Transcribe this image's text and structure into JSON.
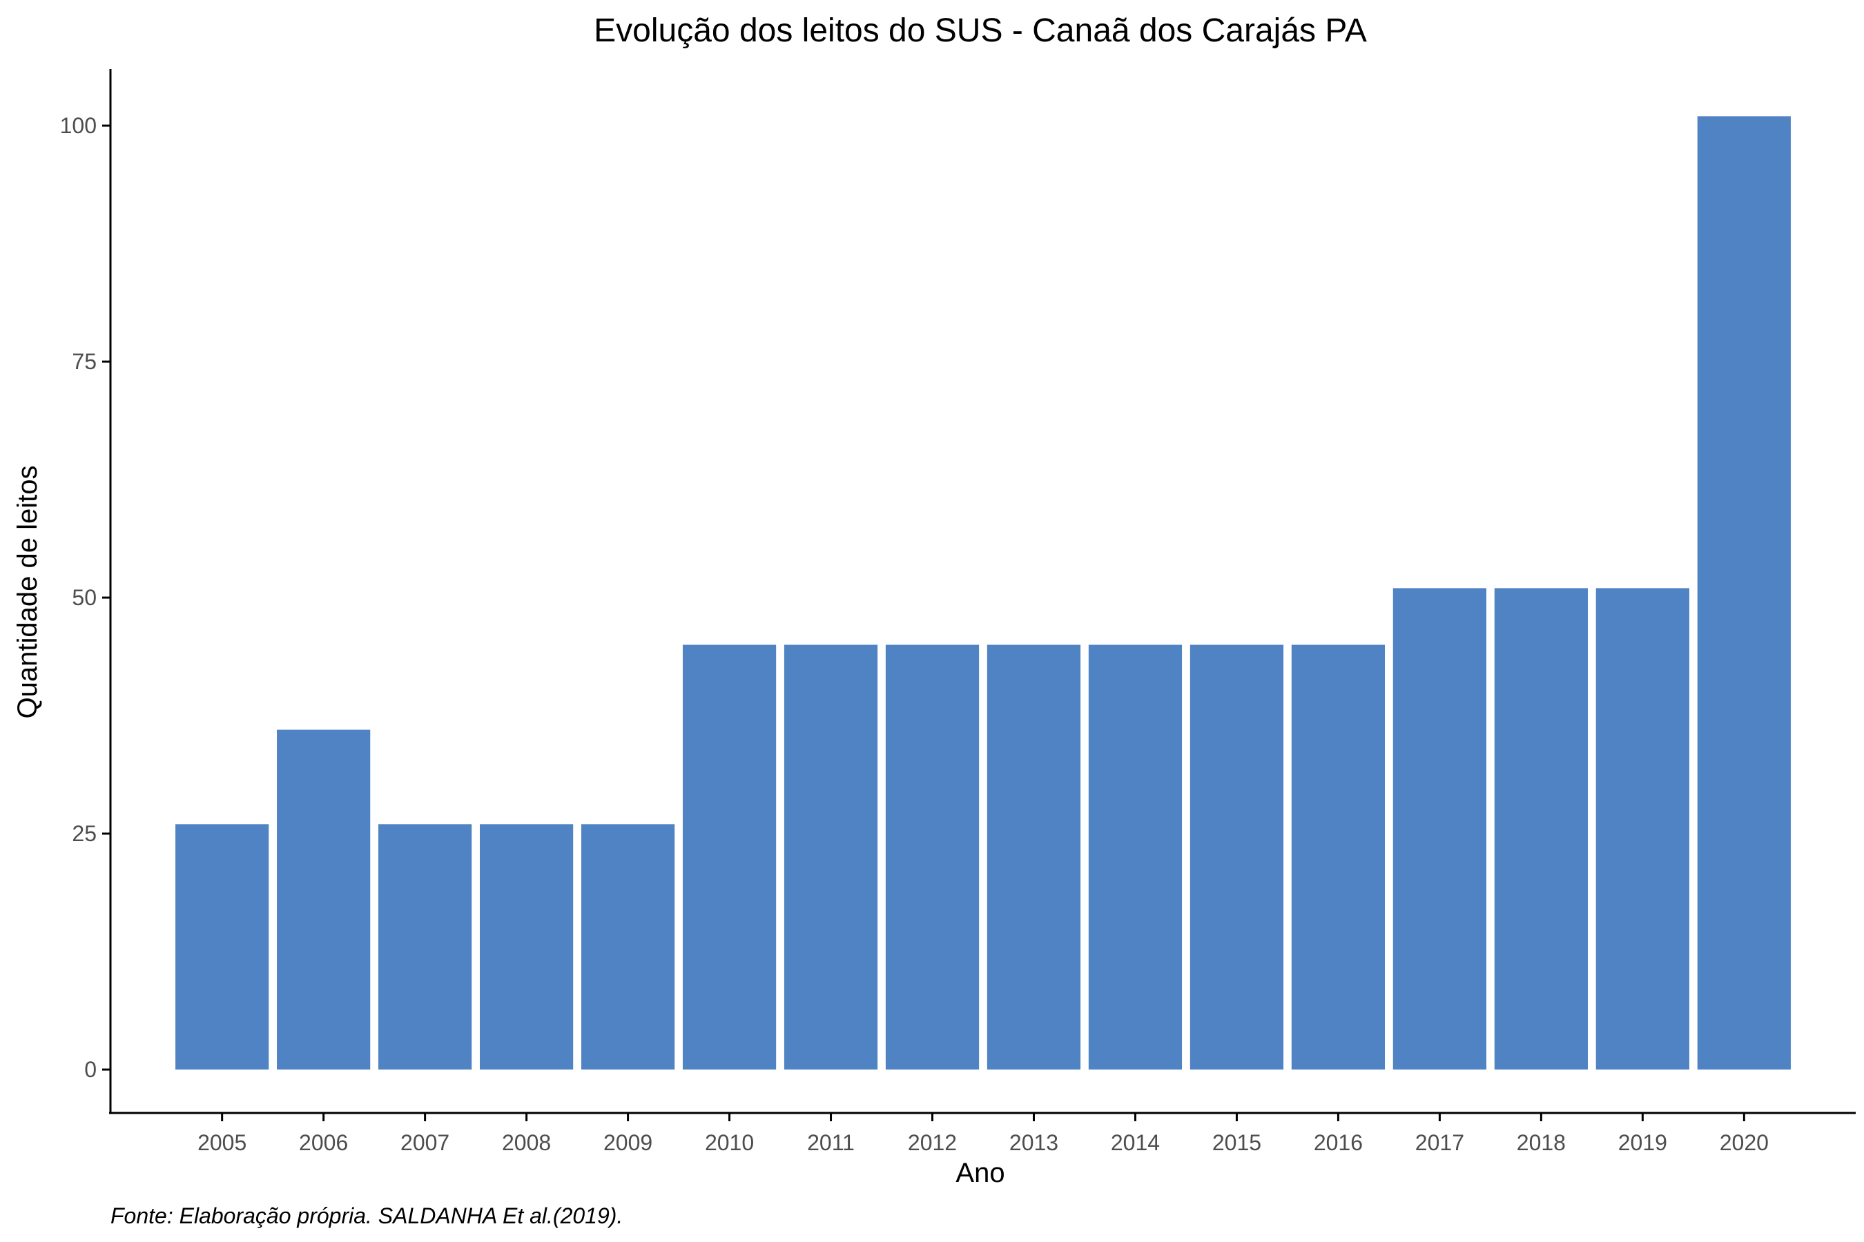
{
  "chart_data": {
    "type": "bar",
    "title": "Evolução dos leitos do SUS -  Canaã dos Carajás PA",
    "xlabel": "Ano",
    "ylabel": "Quantidade de leitos",
    "caption": "Fonte: Elaboração própria. SALDANHA Et al.(2019).",
    "categories": [
      "2005",
      "2006",
      "2007",
      "2008",
      "2009",
      "2010",
      "2011",
      "2012",
      "2013",
      "2014",
      "2015",
      "2016",
      "2017",
      "2018",
      "2019",
      "2020"
    ],
    "values": [
      26,
      36,
      26,
      26,
      26,
      45,
      45,
      45,
      45,
      45,
      45,
      45,
      51,
      51,
      51,
      101
    ],
    "ylim": [
      -4.6,
      106
    ],
    "yticks": [
      0,
      25,
      50,
      75,
      100
    ],
    "grid": false,
    "legend": "none",
    "colors": {
      "bar": "#4F83C3",
      "axis": "#000000",
      "tick_text": "#4d4d4d"
    }
  }
}
